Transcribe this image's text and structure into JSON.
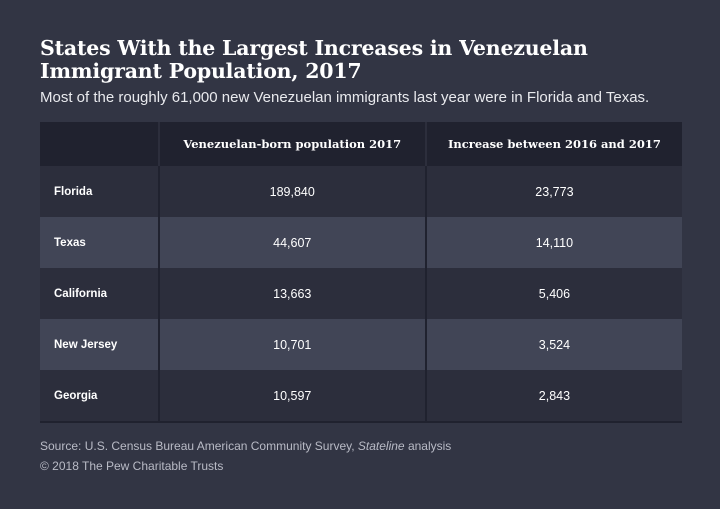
{
  "chart_data": {
    "type": "table",
    "title": "States With the Largest Increases in Venezuelan Immigrant Population, 2017",
    "subtitle": "Most of the roughly 61,000 new Venezuelan immigrants last year were in Florida and Texas.",
    "columns": [
      "",
      "Venezuelan-born population 2017",
      "Increase between 2016 and 2017"
    ],
    "rows": [
      {
        "state": "Florida",
        "population": "189,840",
        "increase": "23,773"
      },
      {
        "state": "Texas",
        "population": "44,607",
        "increase": "14,110"
      },
      {
        "state": "California",
        "population": "13,663",
        "increase": "5,406"
      },
      {
        "state": "New Jersey",
        "population": "10,701",
        "increase": "3,524"
      },
      {
        "state": "Georgia",
        "population": "10,597",
        "increase": "2,843"
      }
    ]
  },
  "footer": {
    "source_prefix": "Source: U.S. Census Bureau American Community Survey, ",
    "source_italic": "Stateline",
    "source_suffix": " analysis",
    "copyright": "© 2018 The Pew Charitable Trusts"
  }
}
